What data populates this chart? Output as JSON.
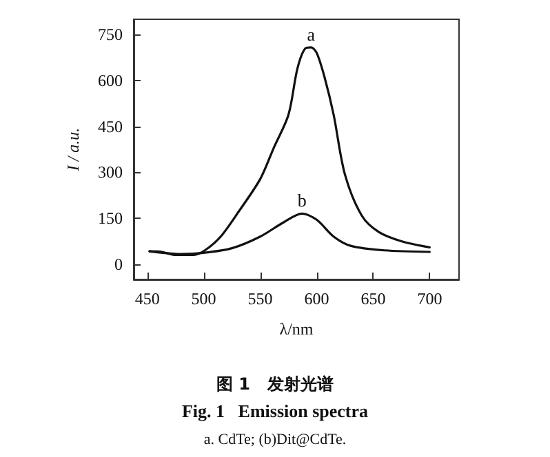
{
  "chart_data": {
    "type": "line",
    "title": "图 1   发射光谱",
    "subtitle": "Fig. 1   Emission spectra",
    "xlabel": "λ/nm",
    "ylabel": "I / a.u.",
    "xlim": [
      438,
      726
    ],
    "ylim": [
      -50,
      800
    ],
    "xticks": [
      450,
      500,
      550,
      600,
      650,
      700
    ],
    "yticks": [
      0,
      150,
      300,
      450,
      600,
      750
    ],
    "grid": false,
    "marker": "none",
    "line_style": "solid",
    "series": [
      {
        "name": "a",
        "color": "#111111",
        "x": [
          452,
          463,
          474,
          491,
          501,
          515,
          531,
          550,
          562,
          575,
          583,
          590,
          595,
          600,
          607,
          615,
          625,
          640,
          655,
          675,
          700
        ],
        "values": [
          42,
          40,
          30,
          30,
          45,
          90,
          172,
          278,
          380,
          488,
          640,
          705,
          708,
          690,
          610,
          488,
          293,
          158,
          105,
          75,
          55
        ]
      },
      {
        "name": "b",
        "color": "#111111",
        "x": [
          452,
          480,
          500,
          525,
          550,
          570,
          587,
          600,
          615,
          630,
          660,
          700
        ],
        "values": [
          42,
          33,
          37,
          52,
          90,
          135,
          165,
          145,
          90,
          60,
          45,
          40
        ]
      }
    ],
    "annotations": [
      "a. CdTe; (b)Dit@CdTe."
    ]
  }
}
